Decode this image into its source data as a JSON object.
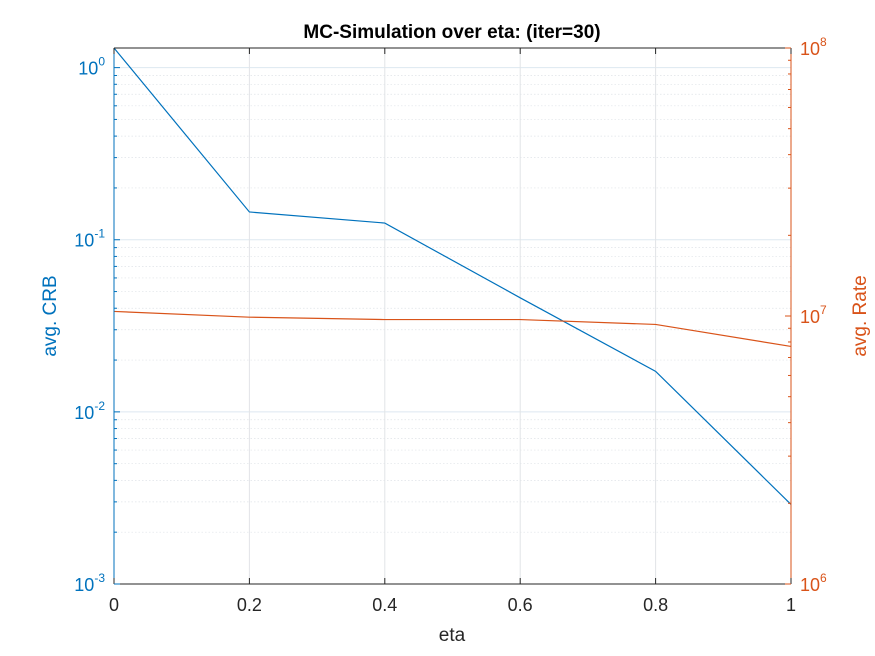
{
  "chart_data": {
    "type": "line",
    "title": "MC-Simulation over eta: (iter=30)",
    "xlabel": "eta",
    "x": [
      0,
      0.2,
      0.4,
      0.6,
      0.8,
      1
    ],
    "xlim": [
      0,
      1
    ],
    "x_ticks": [
      "0",
      "0.2",
      "0.4",
      "0.6",
      "0.8",
      "1"
    ],
    "grid": true,
    "left_axis": {
      "label": "avg. CRB",
      "scale": "log",
      "ylim": [
        0.001,
        1.3
      ],
      "ticks": [
        {
          "base": "10",
          "exp": "0",
          "value": 1
        },
        {
          "base": "10",
          "exp": "-1",
          "value": 0.1
        },
        {
          "base": "10",
          "exp": "-2",
          "value": 0.01
        },
        {
          "base": "10",
          "exp": "-3",
          "value": 0.001
        }
      ],
      "color": "#0072BD"
    },
    "right_axis": {
      "label": "avg. Rate",
      "scale": "log",
      "ylim": [
        1000000,
        100000000
      ],
      "ticks": [
        {
          "base": "10",
          "exp": "8",
          "value": 100000000
        },
        {
          "base": "10",
          "exp": "7",
          "value": 10000000
        },
        {
          "base": "10",
          "exp": "6",
          "value": 1000000
        }
      ],
      "color": "#D95319"
    },
    "series": [
      {
        "axis": "left",
        "color": "#0072BD",
        "values": [
          1.3,
          0.145,
          0.125,
          0.046,
          0.0172,
          0.0029
        ]
      },
      {
        "axis": "right",
        "color": "#D95319",
        "values": [
          10400000,
          9900000,
          9700000,
          9700000,
          9300000,
          7700000
        ]
      }
    ]
  }
}
